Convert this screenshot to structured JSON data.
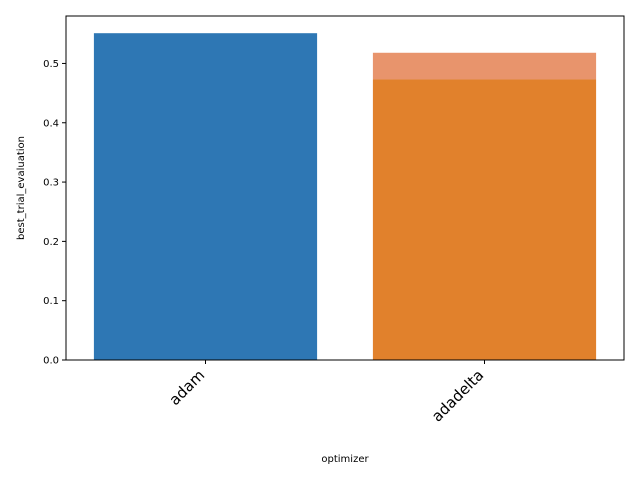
{
  "chart_data": {
    "type": "bar",
    "categories": [
      "adam",
      "adadelta"
    ],
    "values": [
      0.551,
      0.473
    ],
    "ci_upper": [
      null,
      0.518
    ],
    "xlabel": "optimizer",
    "ylabel": "best_trial_evaluation",
    "ylim": [
      0,
      0.58
    ],
    "yticks": [
      0.0,
      0.1,
      0.2,
      0.3,
      0.4,
      0.5
    ],
    "ytick_labels": [
      "0.0",
      "0.1",
      "0.2",
      "0.3",
      "0.4",
      "0.5"
    ],
    "grid": false,
    "colors": {
      "adam": "#2e77b4",
      "adadelta": "#e1812c",
      "adadelta_upper": "#e8946c"
    }
  }
}
